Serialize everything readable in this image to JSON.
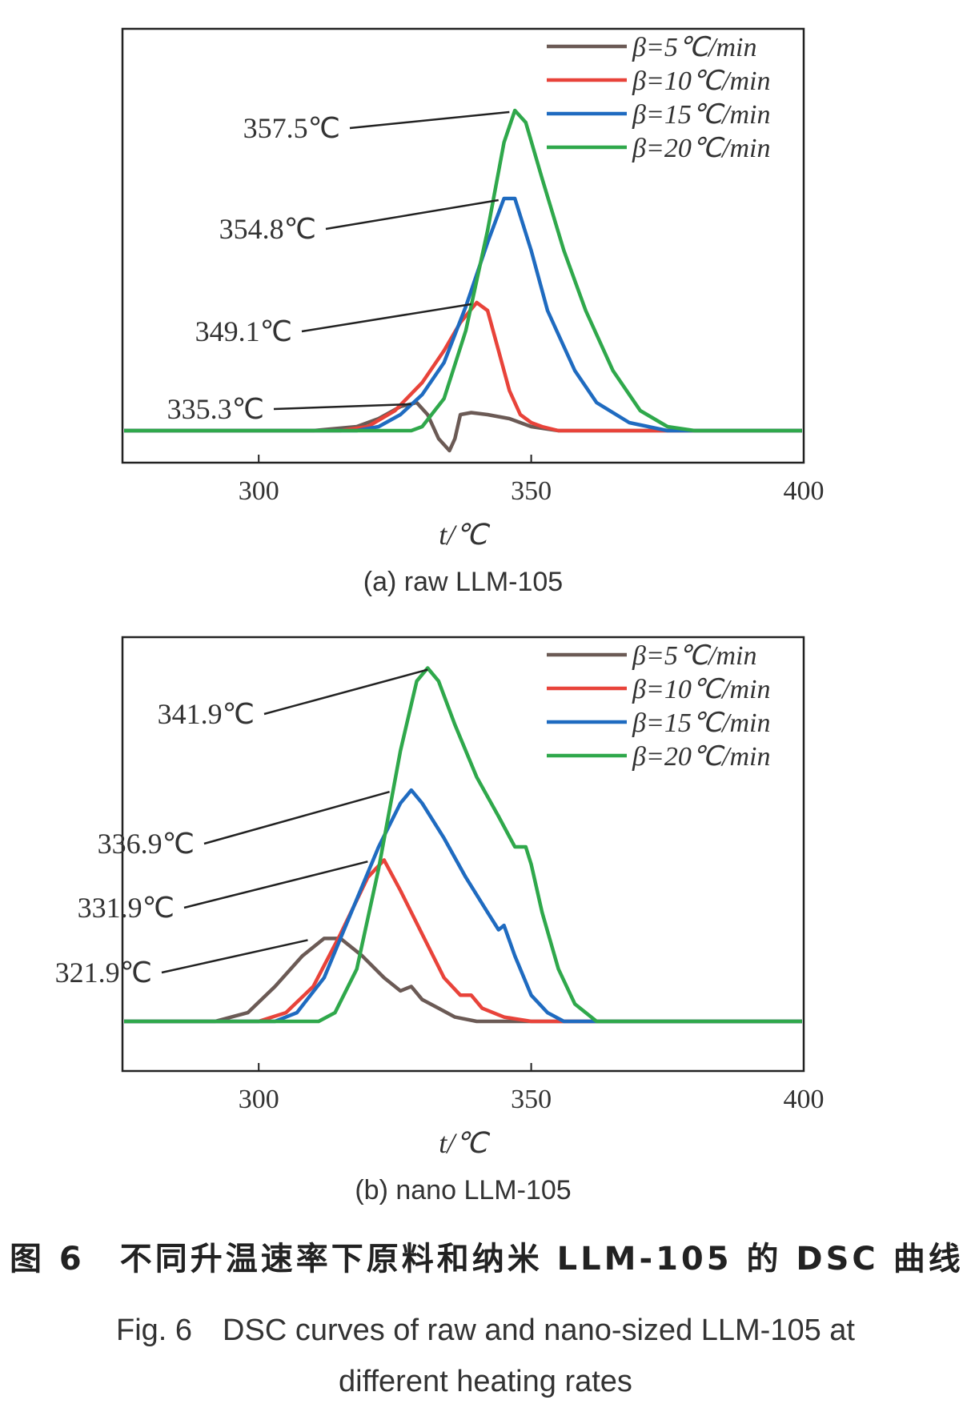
{
  "chart_data": [
    {
      "type": "line",
      "subtitle": "(a) raw LLM-105",
      "xlabel": "t/℃",
      "ylabel": "",
      "xlim": [
        275,
        400
      ],
      "xticks": [
        "300",
        "350",
        "400"
      ],
      "grid": false,
      "legend_position": "top-right",
      "series": [
        {
          "name": "β=5℃/min",
          "color": "#6b5a55",
          "x": [
            275,
            310,
            318,
            322,
            326,
            329,
            331,
            333,
            335,
            336,
            337,
            339,
            342,
            346,
            350,
            355,
            400
          ],
          "y": [
            0,
            0,
            0.01,
            0.03,
            0.06,
            0.07,
            0.04,
            -0.02,
            -0.05,
            -0.02,
            0.04,
            0.045,
            0.04,
            0.03,
            0.01,
            0,
            0
          ]
        },
        {
          "name": "β=10℃/min",
          "color": "#e8433a",
          "x": [
            275,
            315,
            320,
            325,
            330,
            334,
            337,
            340,
            342,
            344,
            346,
            348,
            350,
            352,
            355,
            400
          ],
          "y": [
            0,
            0,
            0.01,
            0.05,
            0.12,
            0.2,
            0.27,
            0.32,
            0.3,
            0.2,
            0.1,
            0.04,
            0.02,
            0.01,
            0,
            0
          ]
        },
        {
          "name": "β=15℃/min",
          "color": "#1f6bc0",
          "x": [
            275,
            318,
            322,
            326,
            330,
            334,
            338,
            342,
            345,
            347,
            350,
            353,
            355,
            358,
            362,
            368,
            375,
            400
          ],
          "y": [
            0,
            0,
            0.01,
            0.04,
            0.09,
            0.17,
            0.31,
            0.47,
            0.58,
            0.58,
            0.45,
            0.3,
            0.24,
            0.15,
            0.07,
            0.02,
            0,
            0
          ]
        },
        {
          "name": "β=20℃/min",
          "color": "#2fa84b",
          "x": [
            275,
            328,
            330,
            334,
            338,
            342,
            345,
            347,
            349,
            352,
            356,
            360,
            365,
            370,
            375,
            380,
            400
          ],
          "y": [
            0,
            0,
            0.01,
            0.08,
            0.25,
            0.5,
            0.72,
            0.8,
            0.77,
            0.63,
            0.45,
            0.3,
            0.15,
            0.05,
            0.01,
            0,
            0
          ]
        }
      ],
      "annotations": [
        {
          "text": "335.3℃",
          "x": 328,
          "y": 0.07
        },
        {
          "text": "349.1℃",
          "x": 339,
          "y": 0.32
        },
        {
          "text": "354.8℃",
          "x": 344,
          "y": 0.58
        },
        {
          "text": "357.5℃",
          "x": 346,
          "y": 0.8
        }
      ]
    },
    {
      "type": "line",
      "subtitle": "(b) nano LLM-105",
      "xlabel": "t/℃",
      "ylabel": "",
      "xlim": [
        275,
        400
      ],
      "xticks": [
        "300",
        "350",
        "400"
      ],
      "grid": false,
      "legend_position": "top-right",
      "series": [
        {
          "name": "β=5℃/min",
          "color": "#6b5a55",
          "x": [
            275,
            292,
            298,
            303,
            308,
            312,
            315,
            319,
            323,
            326,
            328,
            330,
            333,
            336,
            340,
            400
          ],
          "y": [
            0,
            0,
            0.02,
            0.08,
            0.15,
            0.19,
            0.19,
            0.15,
            0.1,
            0.07,
            0.08,
            0.05,
            0.03,
            0.01,
            0,
            0
          ]
        },
        {
          "name": "β=10℃/min",
          "color": "#e8433a",
          "x": [
            275,
            300,
            305,
            310,
            315,
            320,
            323,
            326,
            330,
            334,
            337,
            339,
            341,
            345,
            350,
            355,
            400
          ],
          "y": [
            0,
            0,
            0.02,
            0.08,
            0.2,
            0.33,
            0.37,
            0.3,
            0.2,
            0.1,
            0.06,
            0.06,
            0.03,
            0.01,
            0,
            0,
            0
          ]
        },
        {
          "name": "β=15℃/min",
          "color": "#1f6bc0",
          "x": [
            275,
            303,
            307,
            312,
            318,
            322,
            326,
            328,
            330,
            334,
            338,
            342,
            344,
            345,
            347,
            350,
            353,
            356,
            400
          ],
          "y": [
            0,
            0,
            0.02,
            0.1,
            0.28,
            0.4,
            0.5,
            0.53,
            0.5,
            0.42,
            0.33,
            0.25,
            0.21,
            0.22,
            0.15,
            0.06,
            0.02,
            0,
            0
          ]
        },
        {
          "name": "β=20℃/min",
          "color": "#2fa84b",
          "x": [
            275,
            311,
            314,
            318,
            322,
            326,
            329,
            331,
            333,
            336,
            340,
            344,
            347,
            349,
            350,
            352,
            355,
            358,
            362,
            400
          ],
          "y": [
            0,
            0,
            0.02,
            0.12,
            0.35,
            0.62,
            0.78,
            0.81,
            0.78,
            0.68,
            0.56,
            0.47,
            0.4,
            0.4,
            0.36,
            0.25,
            0.12,
            0.04,
            0,
            0
          ]
        }
      ],
      "annotations": [
        {
          "text": "321.9℃",
          "x": 309,
          "y": 0.19
        },
        {
          "text": "331.9℃",
          "x": 320,
          "y": 0.37
        },
        {
          "text": "336.9℃",
          "x": 324,
          "y": 0.53
        },
        {
          "text": "341.9℃",
          "x": 331,
          "y": 0.81
        }
      ]
    }
  ],
  "caption": {
    "cn": "图 6　不同升温速率下原料和纳米 LLM-105 的 DSC 曲线",
    "en_line1": "Fig. 6　DSC curves of raw and nano-sized LLM-105 at",
    "en_line2": "different heating rates"
  }
}
